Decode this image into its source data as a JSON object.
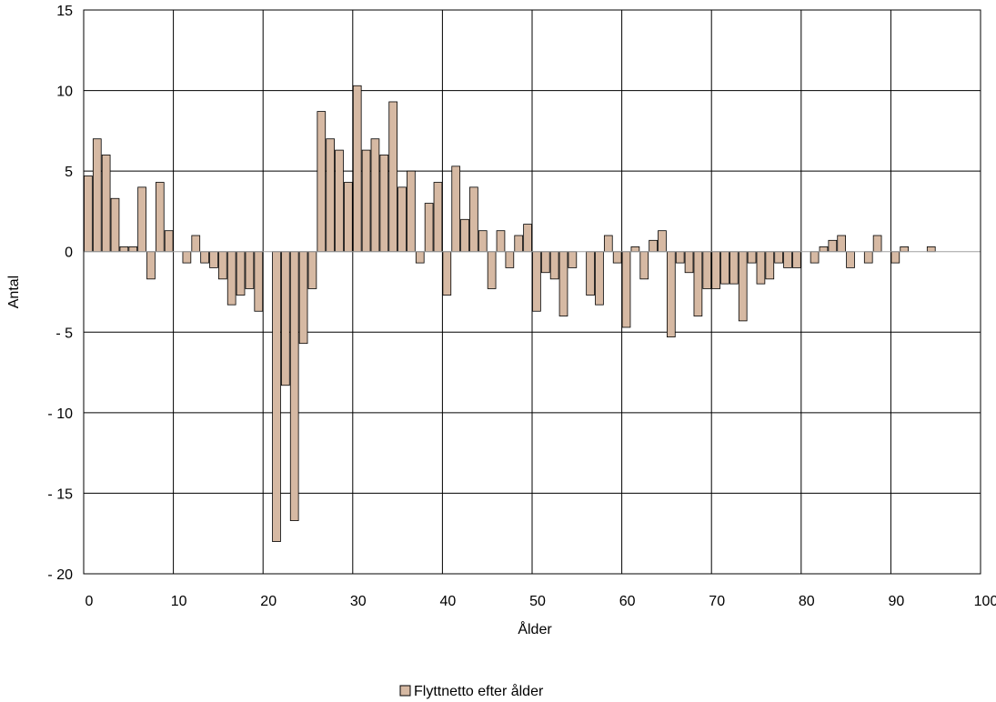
{
  "chart_data": {
    "type": "bar",
    "xlabel": "Ålder",
    "ylabel": "Antal",
    "xlim": [
      0,
      100
    ],
    "ylim": [
      -20,
      15
    ],
    "xticks": [
      0,
      10,
      20,
      30,
      40,
      50,
      60,
      70,
      80,
      90,
      100
    ],
    "yticks": [
      15,
      10,
      5,
      0,
      -5,
      -10,
      -15,
      -20
    ],
    "ytick_labels": [
      "15",
      "10",
      "5",
      "0",
      "- 5",
      "- 10",
      "- 15",
      "- 20"
    ],
    "grid": true,
    "legend_position": "bottom-center",
    "bar_color": "#d6b9a3",
    "bar_edge_color": "#000000",
    "series": [
      {
        "name": "Flyttnetto efter ålder",
        "x": [
          0,
          1,
          2,
          3,
          4,
          5,
          6,
          7,
          8,
          9,
          10,
          11,
          12,
          13,
          14,
          15,
          16,
          17,
          18,
          19,
          20,
          21,
          22,
          23,
          24,
          25,
          26,
          27,
          28,
          29,
          30,
          31,
          32,
          33,
          34,
          35,
          36,
          37,
          38,
          39,
          40,
          41,
          42,
          43,
          44,
          45,
          46,
          47,
          48,
          49,
          50,
          51,
          52,
          53,
          54,
          55,
          56,
          57,
          58,
          59,
          60,
          61,
          62,
          63,
          64,
          65,
          66,
          67,
          68,
          69,
          70,
          71,
          72,
          73,
          74,
          75,
          76,
          77,
          78,
          79,
          80,
          81,
          82,
          83,
          84,
          85,
          86,
          87,
          88,
          89,
          90,
          91,
          92,
          93,
          94
        ],
        "values": [
          4.7,
          7.0,
          6.0,
          3.3,
          0.3,
          0.3,
          4.0,
          -1.7,
          4.3,
          1.3,
          0,
          -0.7,
          1.0,
          -0.7,
          -1.0,
          -1.7,
          -3.3,
          -2.7,
          -2.3,
          -3.7,
          0,
          -18.0,
          -8.3,
          -16.7,
          -5.7,
          -2.3,
          8.7,
          7.0,
          6.3,
          4.3,
          10.3,
          6.3,
          7.0,
          6.0,
          9.3,
          4.0,
          5.0,
          -0.7,
          3.0,
          4.3,
          -2.7,
          5.3,
          2.0,
          4.0,
          1.3,
          -2.3,
          1.3,
          -1.0,
          1.0,
          1.7,
          -3.7,
          -1.3,
          -1.7,
          -4.0,
          -1.0,
          0,
          -2.7,
          -3.3,
          1.0,
          -0.7,
          -4.7,
          0.3,
          -1.7,
          0.7,
          1.3,
          -5.3,
          -0.7,
          -1.3,
          -4.0,
          -2.3,
          -2.3,
          -2.0,
          -2.0,
          -4.3,
          -0.7,
          -2.0,
          -1.7,
          -0.7,
          -1.0,
          -1.0,
          0,
          -0.7,
          0.3,
          0.7,
          1.0,
          -1.0,
          0,
          -0.7,
          1.0,
          0,
          -0.7,
          0.3,
          0,
          0,
          0.3
        ]
      }
    ]
  }
}
